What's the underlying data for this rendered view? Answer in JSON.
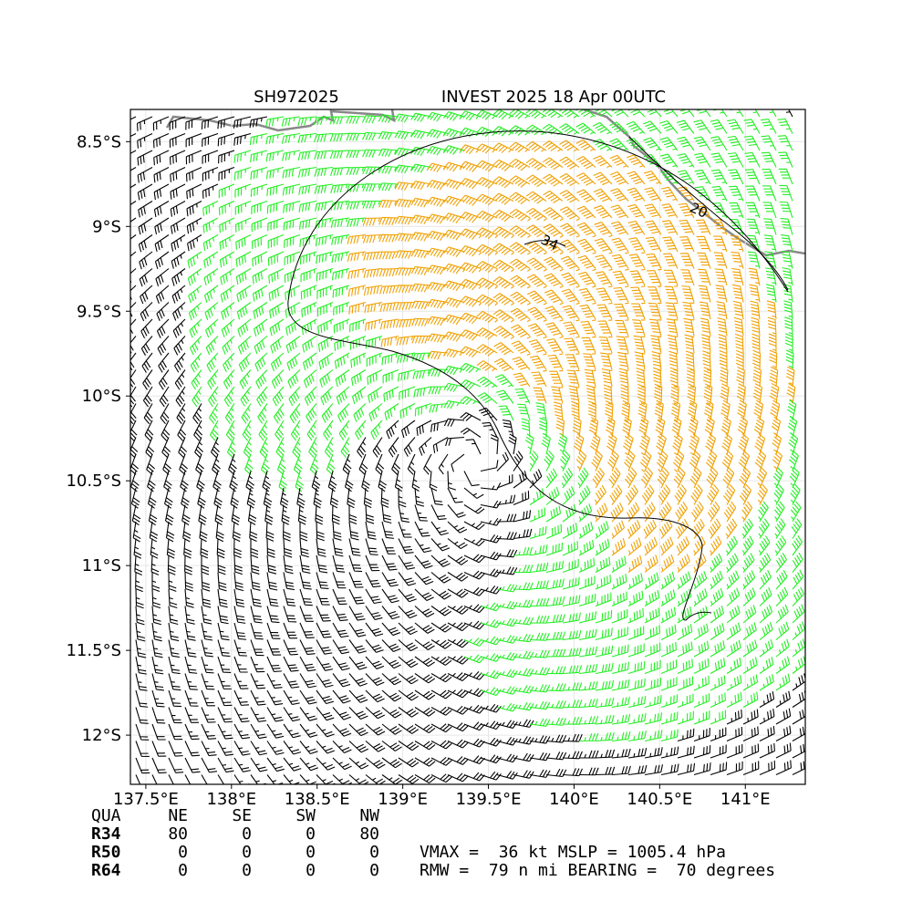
{
  "title": {
    "left": "SH972025",
    "right": "INVEST 2025 18 Apr 00UTC"
  },
  "map": {
    "xlim": [
      137.41,
      141.35
    ],
    "ylim": [
      -12.29,
      -8.31
    ],
    "xticks": [
      {
        "value": 137.5,
        "label": "137.5°E"
      },
      {
        "value": 138,
        "label": "138°E"
      },
      {
        "value": 138.5,
        "label": "138.5°E"
      },
      {
        "value": 139,
        "label": "139°E"
      },
      {
        "value": 139.5,
        "label": "139.5°E"
      },
      {
        "value": 140,
        "label": "140°E"
      },
      {
        "value": 140.5,
        "label": "140.5°E"
      },
      {
        "value": 141,
        "label": "141°E"
      }
    ],
    "yticks": [
      {
        "value": -8.5,
        "label": "8.5°S"
      },
      {
        "value": -9,
        "label": "9°S"
      },
      {
        "value": -9.5,
        "label": "9.5°S"
      },
      {
        "value": -10,
        "label": "10°S"
      },
      {
        "value": -10.5,
        "label": "10.5°S"
      },
      {
        "value": -11,
        "label": "11°S"
      },
      {
        "value": -11.5,
        "label": "11.5°S"
      },
      {
        "value": -12,
        "label": "12°S"
      }
    ],
    "contour_labels": [
      {
        "label": 20,
        "lon": 140.73,
        "lat": -8.9
      },
      {
        "label": 34,
        "lon": 139.86,
        "lat": -9.09
      }
    ]
  },
  "table": {
    "header": [
      "QUA",
      "NE",
      "SE",
      "SW",
      "NW"
    ],
    "rows": [
      [
        "R34",
        80,
        0,
        0,
        80
      ],
      [
        "R50",
        0,
        0,
        0,
        0
      ],
      [
        "R64",
        0,
        0,
        0,
        0
      ]
    ]
  },
  "stats": [
    "VMAX =  36 kt MSLP = 1005.4 hPa",
    "RMW =  79 n mi BEARING =  70 degrees"
  ]
}
